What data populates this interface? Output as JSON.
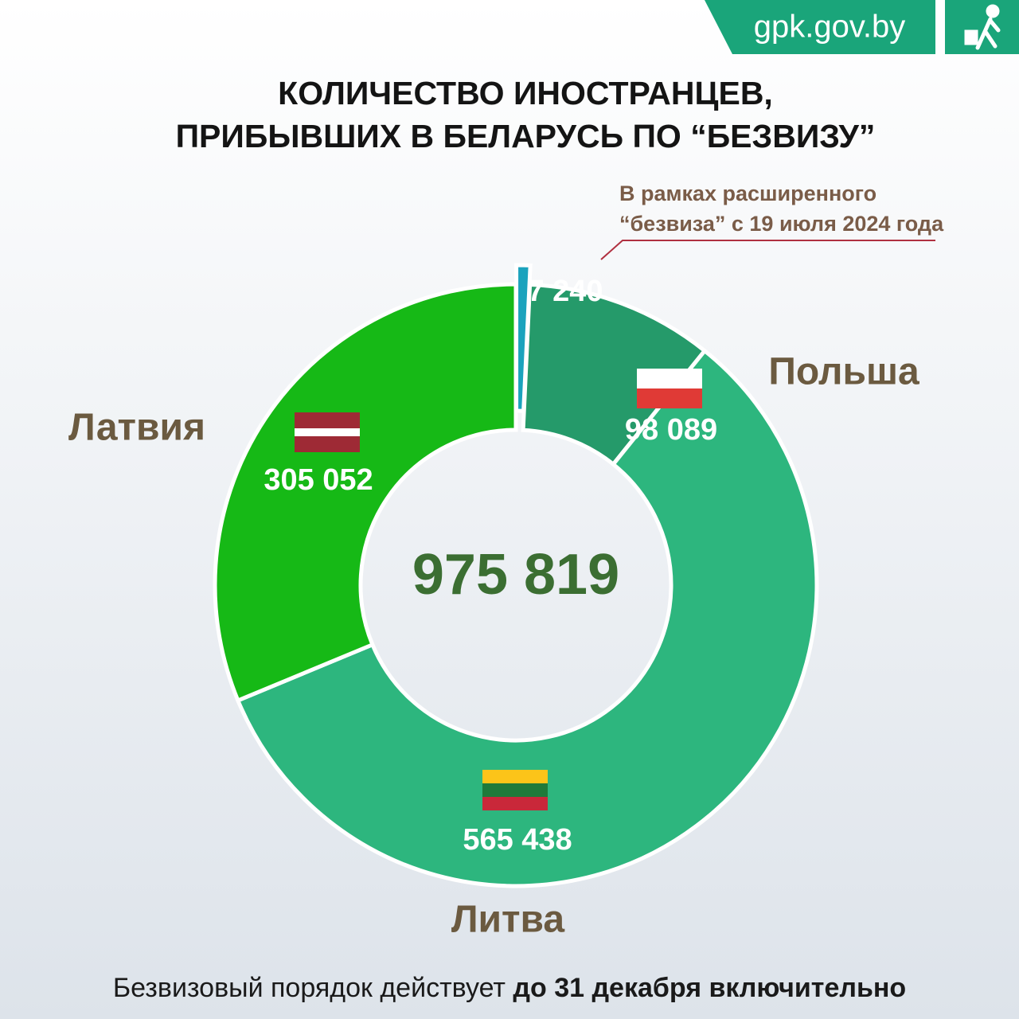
{
  "header": {
    "site": "gpk.gov.by"
  },
  "chart_data": {
    "type": "pie",
    "donut": true,
    "title": [
      "КОЛИЧЕСТВО ИНОСТРАНЦЕВ,",
      "ПРИБЫВШИХ В БЕЛАРУСЬ ПО “БЕЗВИЗУ”"
    ],
    "annotation": [
      "В рамках расширенного",
      "“безвиза” с 19 июля 2024 года"
    ],
    "categories": [
      null,
      "Польша",
      "Литва",
      "Латвия"
    ],
    "values": [
      7240,
      98089,
      565438,
      305052
    ],
    "value_labels": [
      "7 240",
      "98 089",
      "565 438",
      "305 052"
    ],
    "colors": [
      "#1ba3bd",
      "#259a6a",
      "#2db67e",
      "#16b916"
    ],
    "exploded": [
      true,
      false,
      false,
      false
    ],
    "total": {
      "value": 975819,
      "label": "975 819"
    }
  },
  "footer": {
    "text": "Безвизовый порядок действует",
    "emphasis": "до 31 декабря включительно"
  }
}
